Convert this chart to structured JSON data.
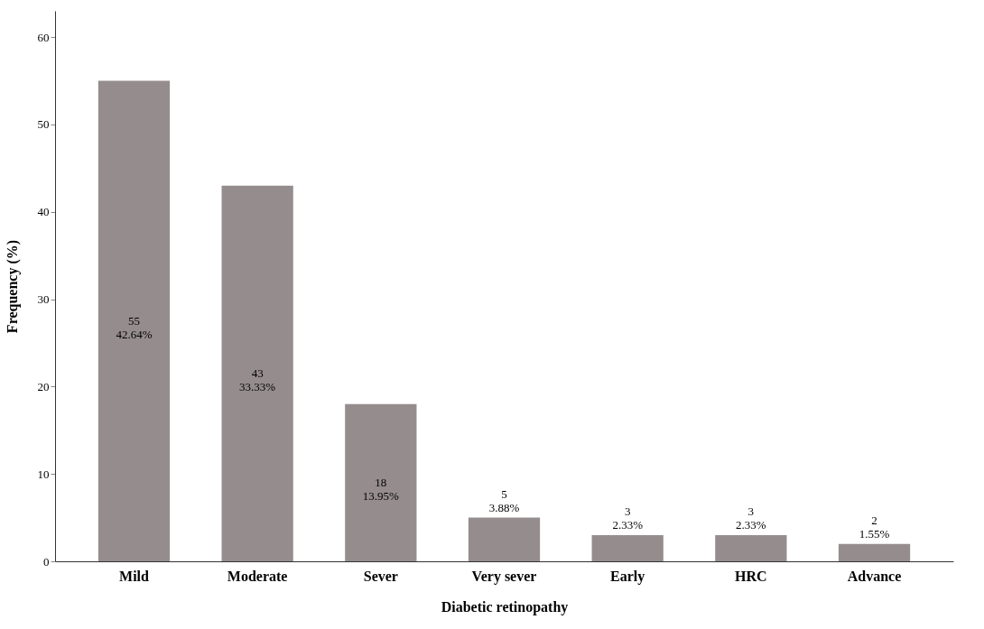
{
  "chart_data": {
    "type": "bar",
    "xlabel": "Diabetic retinopathy",
    "ylabel": "Frequency (%)",
    "categories": [
      "Mild",
      "Moderate",
      "Sever",
      "Very sever",
      "Early",
      "HRC",
      "Advance"
    ],
    "values": [
      55,
      43,
      18,
      5,
      3,
      3,
      2
    ],
    "value_labels": [
      "55\n42.64%",
      "43\n33.33%",
      "18\n13.95%",
      "5\n3.88%",
      "3\n2.33%",
      "3\n2.33%",
      "2\n1.55%"
    ],
    "color": "#958d8d",
    "ylim": [
      0,
      63
    ],
    "yticks": [
      0,
      10,
      20,
      30,
      40,
      50,
      60
    ],
    "grid": false
  }
}
